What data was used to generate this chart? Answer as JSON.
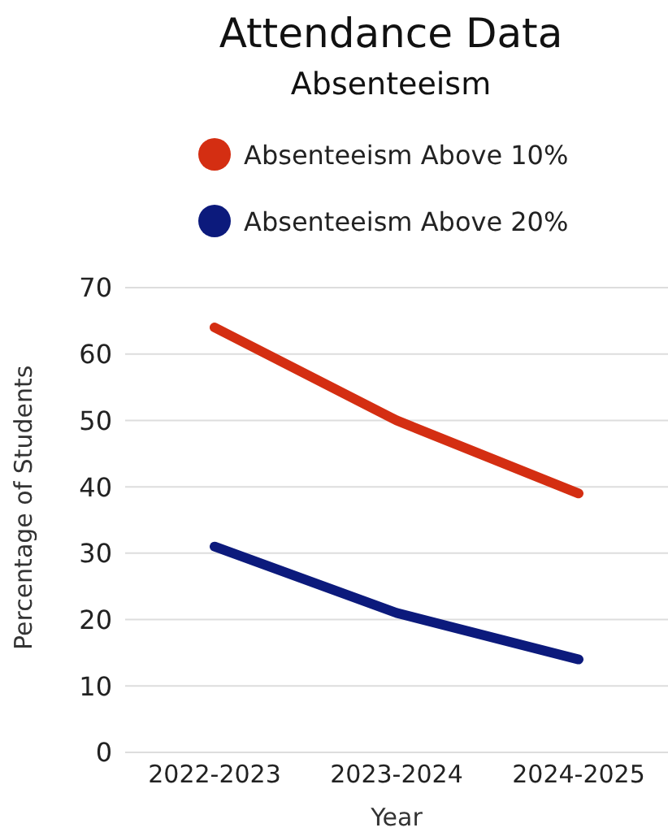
{
  "chart_data": {
    "type": "line",
    "title": "Attendance Data",
    "subtitle": "Absenteeism",
    "xlabel": "Year",
    "ylabel": "Percentage of Students",
    "categories": [
      "2022-2023",
      "2023-2024",
      "2024-2025"
    ],
    "series": [
      {
        "name": "Absenteeism Above 10%",
        "color": "#d42e12",
        "values": [
          64,
          50,
          39
        ]
      },
      {
        "name": "Absenteeism Above 20%",
        "color": "#0c1a7c",
        "values": [
          31,
          21,
          14
        ]
      }
    ],
    "ylim": [
      0,
      70
    ],
    "yticks": [
      0,
      10,
      20,
      30,
      40,
      50,
      60,
      70
    ],
    "grid": "y",
    "legend": "top",
    "marker": "none",
    "line_style": "solid"
  }
}
